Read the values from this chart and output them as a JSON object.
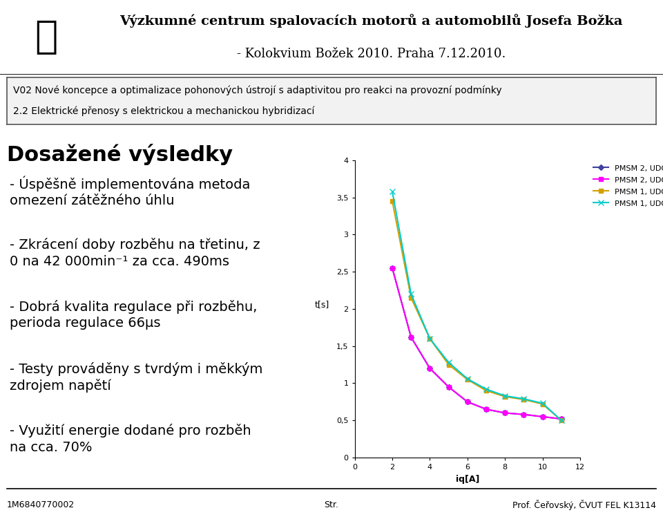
{
  "title_line1": "Výzkumné centrum spalovacích motorů a automobilů Josefa Božka",
  "title_line2": "- Kolokvium Božek 2010. Praha 7.12.2010.",
  "subtitle_line1": "V02 Nové koncepce a optimalizace pohonových ústrojí s adaptivitou pro reakci na provozní podmínky",
  "subtitle_line2": "2.2 Elektrické přenosy s elektrickou a mechanickou hybridizací",
  "section_title": "Dosažené výsledky",
  "bullet_points": [
    "- Úspěšně implementována metoda\nomezení zátěžného úhlu",
    "- Zkrácení doby rozběhu na třetinu, z\n0 na 42 000min⁻¹ za cca. 490ms",
    "- Dobrá kvalita regulace při rozběhu,\nperioda regulace 66µs",
    "- Testy prováděny s tvrdým i měkkým\nzdrojem napětí",
    "- Využití energie dodané pro rozběh\nna cca. 70%"
  ],
  "footer_left": "1M6840770002",
  "footer_center": "Str.",
  "footer_right": "Prof. Čeřovský, ČVUT FEL K13114",
  "series": {
    "PMSM 2, UDC 1": {
      "x": [
        2,
        3,
        4,
        5,
        6,
        7,
        8,
        9,
        10,
        11
      ],
      "y": [
        2.55,
        1.62,
        1.2,
        0.95,
        0.75,
        0.65,
        0.6,
        0.58,
        0.55,
        0.52
      ],
      "color": "#4040a0",
      "marker": "D",
      "markersize": 4,
      "linewidth": 1.5
    },
    "PMSM 2, UDC 2": {
      "x": [
        2,
        3,
        4,
        5,
        6,
        7,
        8,
        9,
        10,
        11
      ],
      "y": [
        2.55,
        1.62,
        1.2,
        0.95,
        0.75,
        0.65,
        0.6,
        0.58,
        0.55,
        0.52
      ],
      "color": "#ff00ff",
      "marker": "s",
      "markersize": 4,
      "linewidth": 1.5
    },
    "PMSM 1, UDC 1": {
      "x": [
        2,
        3,
        4,
        5,
        6,
        7,
        8,
        9,
        10,
        11
      ],
      "y": [
        3.45,
        2.15,
        1.6,
        1.25,
        1.05,
        0.9,
        0.82,
        0.78,
        0.72,
        0.5
      ],
      "color": "#d4a000",
      "marker": "s",
      "markersize": 4,
      "linewidth": 1.5
    },
    "PMSM 1, UDC 2": {
      "x": [
        2,
        3,
        4,
        5,
        6,
        7,
        8,
        9,
        10,
        11
      ],
      "y": [
        3.58,
        2.2,
        1.6,
        1.28,
        1.06,
        0.92,
        0.83,
        0.79,
        0.73,
        0.5
      ],
      "color": "#00cccc",
      "marker": "x",
      "markersize": 6,
      "linewidth": 1.5
    }
  },
  "xlabel": "iq[A]",
  "ylabel": "t[s]",
  "xlim": [
    0,
    12
  ],
  "ylim": [
    0,
    4
  ],
  "yticks": [
    0,
    0.5,
    1,
    1.5,
    2,
    2.5,
    3,
    3.5,
    4
  ],
  "xticks": [
    0,
    2,
    4,
    6,
    8,
    10,
    12
  ],
  "bg_color": "#ffffff",
  "subtitle_box_bg": "#f2f2f2",
  "header_img_color": "#cccccc",
  "bullet_fontsize": 14,
  "section_fontsize": 22,
  "title_fontsize": 14,
  "subtitle_fontsize": 10
}
